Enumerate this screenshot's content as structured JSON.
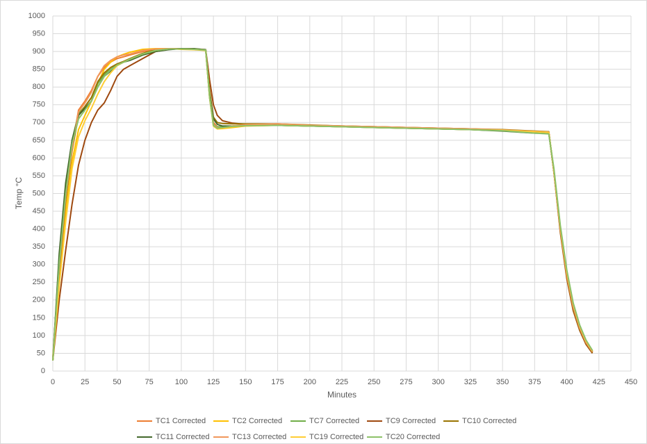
{
  "chart_data": {
    "type": "line",
    "x_label": "Minutes",
    "y_label": "Temp °C",
    "xlim": [
      0,
      450
    ],
    "xticks": [
      0,
      25,
      50,
      75,
      100,
      125,
      150,
      175,
      200,
      225,
      250,
      275,
      300,
      325,
      350,
      375,
      400,
      425,
      450
    ],
    "ylim": [
      0,
      1000
    ],
    "yticks": [
      0,
      50,
      100,
      150,
      200,
      250,
      300,
      350,
      400,
      450,
      500,
      550,
      600,
      650,
      700,
      750,
      800,
      850,
      900,
      950,
      1000
    ],
    "grid": true,
    "legend": "bottom",
    "x": [
      0,
      5,
      10,
      15,
      20,
      25,
      30,
      35,
      40,
      45,
      50,
      55,
      60,
      70,
      80,
      90,
      100,
      110,
      119,
      122,
      125,
      128,
      132,
      140,
      150,
      175,
      200,
      225,
      250,
      275,
      300,
      325,
      350,
      375,
      386,
      390,
      395,
      400,
      405,
      410,
      415,
      420
    ],
    "series": [
      {
        "name": "TC1 Corrected",
        "color": "#ed7d31",
        "values": [
          40,
          300,
          500,
          630,
          735,
          760,
          790,
          830,
          855,
          870,
          880,
          885,
          890,
          900,
          905,
          908,
          908,
          906,
          905,
          780,
          700,
          688,
          685,
          688,
          692,
          693,
          691,
          689,
          687,
          685,
          683,
          681,
          679,
          675,
          673,
          560,
          395,
          270,
          180,
          120,
          80,
          52
        ]
      },
      {
        "name": "TC2 Corrected",
        "color": "#ffc000",
        "values": [
          30,
          260,
          450,
          590,
          680,
          720,
          760,
          810,
          850,
          870,
          885,
          892,
          898,
          906,
          908,
          908,
          906,
          905,
          903,
          770,
          690,
          682,
          683,
          686,
          690,
          692,
          691,
          689,
          687,
          685,
          683,
          681,
          679,
          675,
          673,
          560,
          400,
          275,
          185,
          125,
          82,
          55
        ]
      },
      {
        "name": "TC7 Corrected",
        "color": "#70ad47",
        "values": [
          30,
          320,
          520,
          650,
          725,
          745,
          770,
          810,
          835,
          850,
          862,
          870,
          878,
          893,
          902,
          906,
          908,
          906,
          905,
          770,
          695,
          688,
          688,
          690,
          692,
          692,
          690,
          688,
          686,
          684,
          682,
          680,
          677,
          671,
          670,
          565,
          405,
          280,
          188,
          128,
          84,
          56
        ]
      },
      {
        "name": "TC9 Corrected",
        "color": "#9e480e",
        "values": [
          30,
          200,
          340,
          470,
          580,
          650,
          700,
          735,
          755,
          790,
          830,
          850,
          860,
          880,
          900,
          906,
          908,
          906,
          905,
          820,
          750,
          720,
          705,
          698,
          695,
          695,
          692,
          690,
          688,
          686,
          684,
          682,
          678,
          675,
          674,
          560,
          390,
          260,
          170,
          115,
          75,
          50
        ]
      },
      {
        "name": "TC10 Corrected",
        "color": "#997300",
        "values": [
          30,
          280,
          480,
          620,
          720,
          745,
          770,
          815,
          840,
          855,
          865,
          872,
          880,
          895,
          905,
          908,
          907,
          906,
          904,
          790,
          715,
          700,
          697,
          696,
          696,
          696,
          693,
          690,
          688,
          686,
          684,
          682,
          680,
          676,
          674,
          560,
          395,
          265,
          175,
          118,
          78,
          52
        ]
      },
      {
        "name": "TC11 Corrected",
        "color": "#43682b",
        "values": [
          30,
          330,
          530,
          650,
          720,
          740,
          760,
          800,
          830,
          845,
          860,
          870,
          875,
          890,
          900,
          905,
          908,
          908,
          905,
          780,
          710,
          695,
          690,
          690,
          692,
          692,
          690,
          688,
          686,
          684,
          682,
          680,
          676,
          670,
          670,
          560,
          400,
          280,
          190,
          130,
          85,
          55
        ]
      },
      {
        "name": "TC13 Corrected",
        "color": "#f1975a",
        "values": [
          35,
          290,
          490,
          625,
          730,
          755,
          785,
          830,
          860,
          875,
          885,
          890,
          893,
          903,
          907,
          908,
          907,
          906,
          904,
          775,
          695,
          686,
          685,
          690,
          694,
          696,
          692,
          690,
          688,
          686,
          684,
          682,
          679,
          675,
          673,
          560,
          398,
          270,
          180,
          122,
          80,
          54
        ]
      },
      {
        "name": "TC19 Corrected",
        "color": "#ffcd33",
        "values": [
          30,
          240,
          420,
          570,
          660,
          705,
          740,
          780,
          815,
          840,
          860,
          870,
          878,
          893,
          903,
          907,
          907,
          906,
          904,
          775,
          690,
          683,
          685,
          688,
          691,
          692,
          690,
          688,
          686,
          684,
          682,
          680,
          678,
          674,
          672,
          565,
          405,
          280,
          190,
          128,
          85,
          57
        ]
      },
      {
        "name": "TC20 Corrected",
        "color": "#8cc168",
        "values": [
          30,
          300,
          500,
          640,
          710,
          735,
          760,
          800,
          830,
          848,
          862,
          870,
          878,
          893,
          903,
          907,
          907,
          906,
          904,
          775,
          692,
          684,
          686,
          689,
          691,
          692,
          690,
          688,
          686,
          684,
          682,
          680,
          677,
          670,
          668,
          570,
          410,
          285,
          192,
          130,
          87,
          58
        ]
      }
    ]
  }
}
